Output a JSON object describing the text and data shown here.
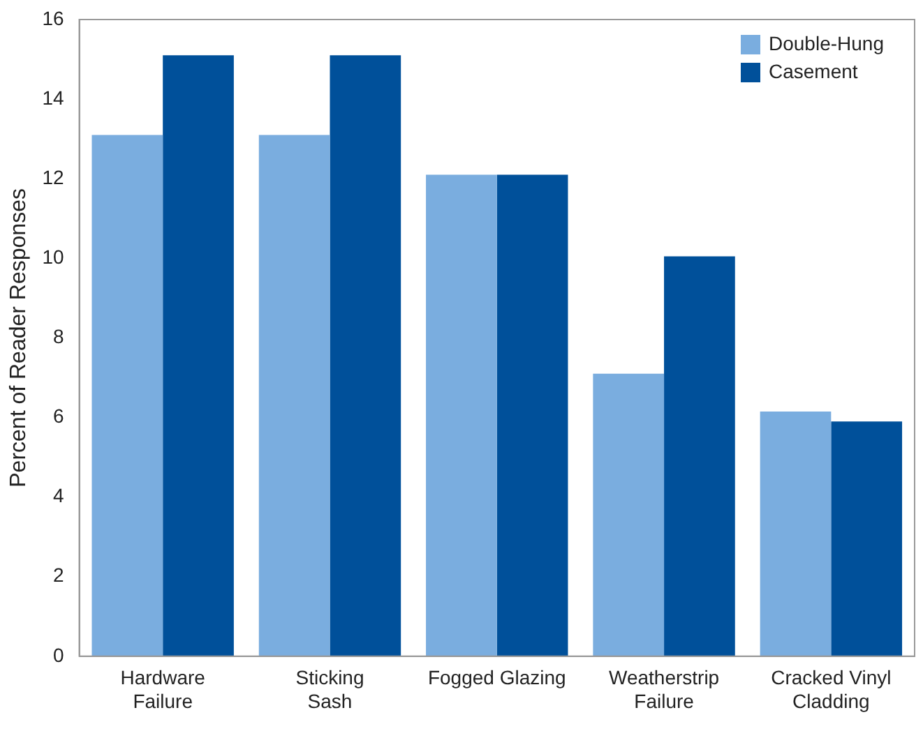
{
  "chart_data": {
    "type": "bar",
    "ylabel": "Percent of Reader Responses",
    "categories": [
      "Hardware\nFailure",
      "Sticking\nSash",
      "Fogged Glazing",
      "Weatherstrip\nFailure",
      "Cracked Vinyl\nCladding"
    ],
    "series": [
      {
        "name": "Double-Hung",
        "color": "#7aaddf",
        "values": [
          13.1,
          13.1,
          12.1,
          7.1,
          6.15
        ]
      },
      {
        "name": "Casement",
        "color": "#00509a",
        "values": [
          15.1,
          15.1,
          12.1,
          10.05,
          5.9
        ]
      }
    ],
    "ylim": [
      0,
      16
    ],
    "yticks": [
      0,
      2,
      4,
      6,
      8,
      10,
      12,
      14,
      16
    ],
    "grid": false,
    "legend": "top right"
  }
}
